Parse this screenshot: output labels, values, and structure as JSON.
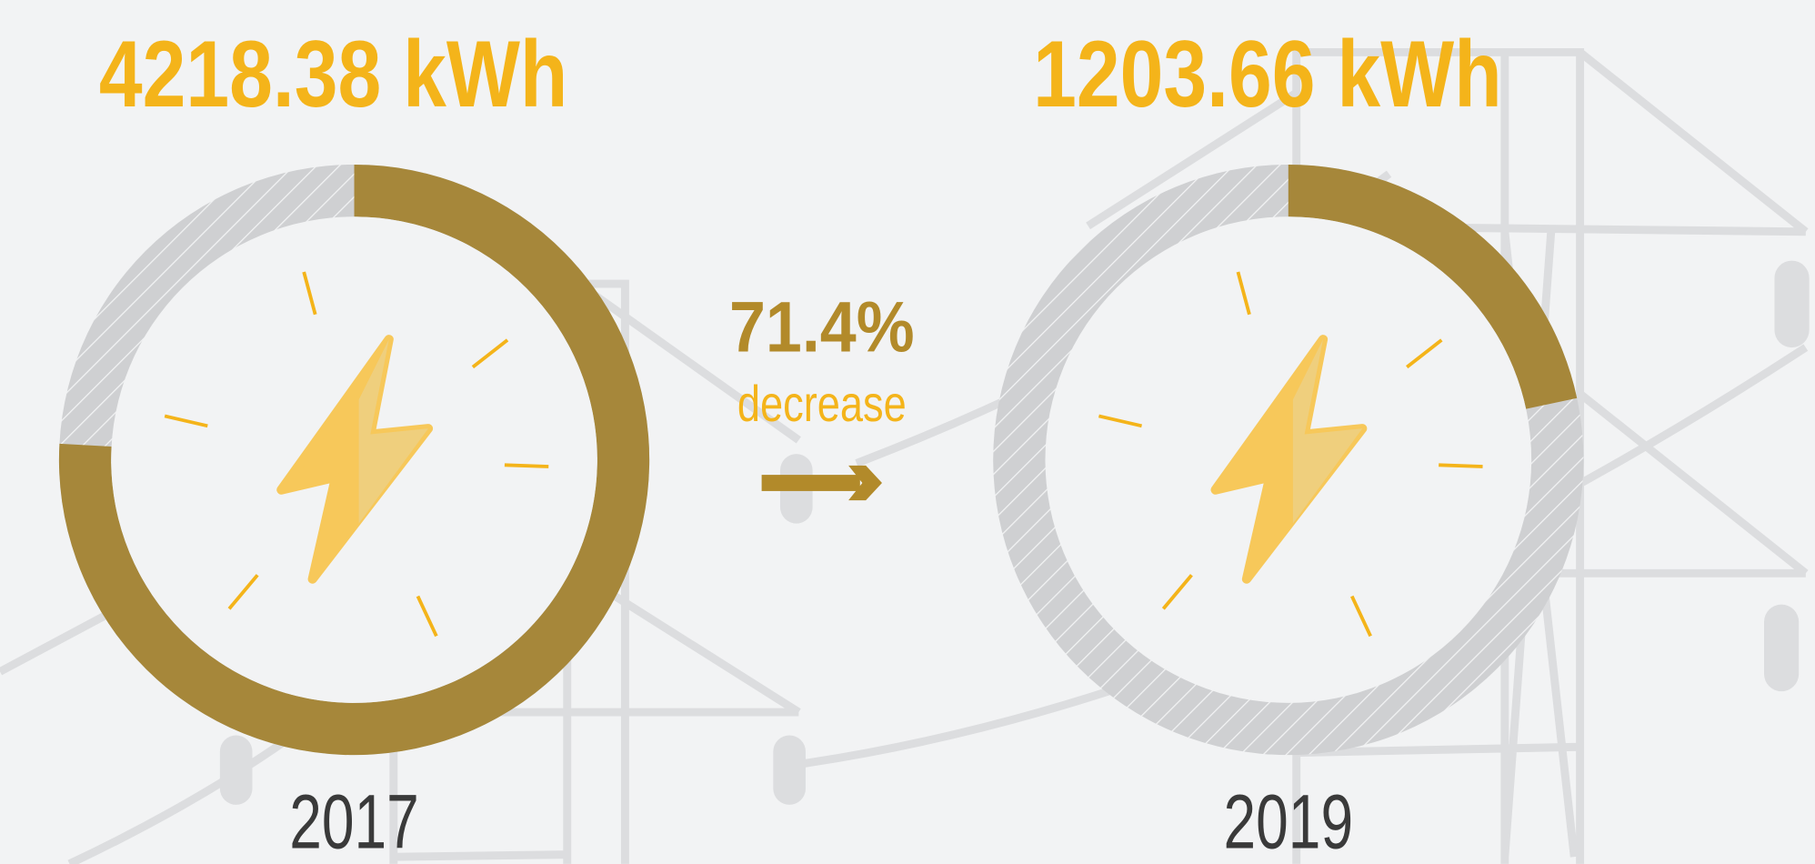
{
  "chart_data": {
    "type": "gauge",
    "categories": [
      "2017",
      "2019"
    ],
    "values": [
      4218.38,
      1203.66
    ],
    "value_labels": [
      "4218.38 kWh",
      "1203.66 kWh"
    ],
    "ylim": [
      0,
      5560
    ],
    "color": "#a6873a",
    "annotation": {
      "value": "71.4%",
      "label": "decrease"
    }
  }
}
